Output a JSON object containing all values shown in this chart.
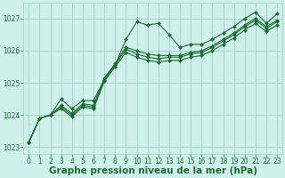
{
  "background_color": "#cff0eb",
  "grid_color": "#9ecfbf",
  "line_color": "#1a6b30",
  "xlabel": "Graphe pression niveau de la mer (hPa)",
  "ylim": [
    1022.8,
    1027.5
  ],
  "xlim": [
    -0.5,
    23.5
  ],
  "yticks": [
    1023,
    1024,
    1025,
    1026,
    1027
  ],
  "xticks": [
    0,
    1,
    2,
    3,
    4,
    5,
    6,
    7,
    8,
    9,
    10,
    11,
    12,
    13,
    14,
    15,
    16,
    17,
    18,
    19,
    20,
    21,
    22,
    23
  ],
  "series": [
    [
      1023.15,
      1023.9,
      1024.0,
      1024.5,
      1024.2,
      1024.45,
      1024.45,
      1025.1,
      1025.55,
      1026.35,
      1026.9,
      1026.8,
      1026.85,
      1026.5,
      1026.1,
      1026.2,
      1026.2,
      1026.35,
      1026.55,
      1026.75,
      1027.0,
      1027.2,
      1026.85,
      1027.15
    ],
    [
      1023.15,
      1023.9,
      1024.0,
      1024.3,
      1024.05,
      1024.35,
      1024.3,
      1025.15,
      1025.6,
      1026.1,
      1026.0,
      1025.9,
      1025.85,
      1025.85,
      1025.85,
      1025.95,
      1026.0,
      1026.15,
      1026.35,
      1026.55,
      1026.8,
      1027.0,
      1026.75,
      1026.95
    ],
    [
      1023.15,
      1023.9,
      1024.0,
      1024.25,
      1024.0,
      1024.3,
      1024.25,
      1025.1,
      1025.55,
      1026.05,
      1025.9,
      1025.8,
      1025.75,
      1025.8,
      1025.8,
      1025.9,
      1025.95,
      1026.1,
      1026.3,
      1026.5,
      1026.75,
      1026.95,
      1026.7,
      1026.9
    ],
    [
      1023.15,
      1023.9,
      1024.0,
      1024.2,
      1023.95,
      1024.25,
      1024.2,
      1025.05,
      1025.5,
      1025.95,
      1025.8,
      1025.7,
      1025.65,
      1025.7,
      1025.7,
      1025.8,
      1025.85,
      1026.0,
      1026.2,
      1026.4,
      1026.65,
      1026.85,
      1026.6,
      1026.8
    ]
  ],
  "marker": "D",
  "markersize": 2.0,
  "linewidth": 0.8,
  "tick_fontsize": 5.5,
  "xlabel_fontsize": 7.5
}
